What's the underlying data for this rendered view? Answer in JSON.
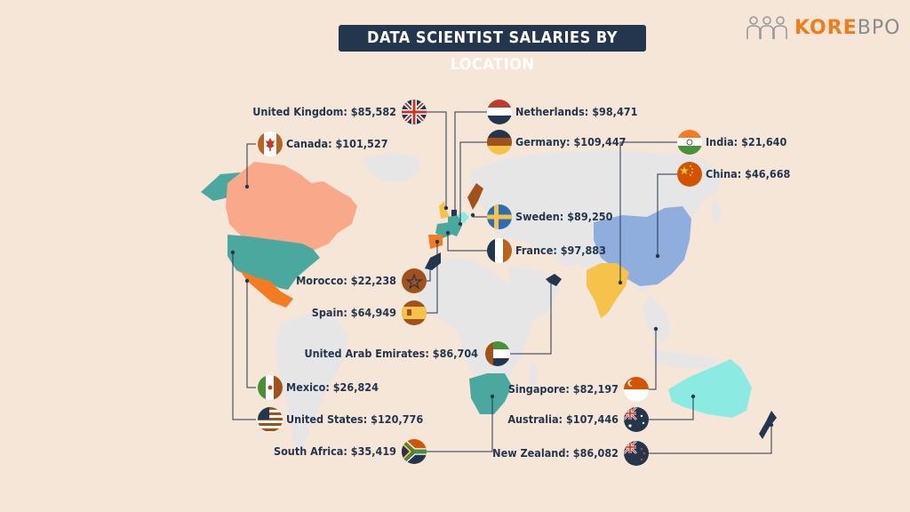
{
  "title": "DATA SCIENTIST SALARIES BY LOCATION",
  "brand": {
    "primary": "KORE",
    "secondary": "BPO",
    "icon": "people-group-icon"
  },
  "colors": {
    "title_bg": "#23364d",
    "brand_orange": "#f07d1a",
    "label_text": "#23364d",
    "background": "#f6e6d8",
    "land": "#e6e6e6"
  },
  "locations": [
    {
      "id": "united-kingdom",
      "label": "United Kingdom: $85,582",
      "country": "United Kingdom",
      "salary": 85582,
      "flag": "uk-flag-icon"
    },
    {
      "id": "netherlands",
      "label": "Netherlands: $98,471",
      "country": "Netherlands",
      "salary": 98471,
      "flag": "netherlands-flag-icon"
    },
    {
      "id": "canada",
      "label": "Canada: $101,527",
      "country": "Canada",
      "salary": 101527,
      "flag": "canada-flag-icon"
    },
    {
      "id": "germany",
      "label": "Germany: $109,447",
      "country": "Germany",
      "salary": 109447,
      "flag": "germany-flag-icon"
    },
    {
      "id": "india",
      "label": "India: $21,640",
      "country": "India",
      "salary": 21640,
      "flag": "india-flag-icon"
    },
    {
      "id": "china",
      "label": "China: $46,668",
      "country": "China",
      "salary": 46668,
      "flag": "china-flag-icon"
    },
    {
      "id": "sweden",
      "label": "Sweden: $89,250",
      "country": "Sweden",
      "salary": 89250,
      "flag": "sweden-flag-icon"
    },
    {
      "id": "france",
      "label": "France: $97,883",
      "country": "France",
      "salary": 97883,
      "flag": "france-flag-icon"
    },
    {
      "id": "morocco",
      "label": "Morocco: $22,238",
      "country": "Morocco",
      "salary": 22238,
      "flag": "morocco-flag-icon"
    },
    {
      "id": "spain",
      "label": "Spain: $64,949",
      "country": "Spain",
      "salary": 64949,
      "flag": "spain-flag-icon"
    },
    {
      "id": "uae",
      "label": "United Arab Emirates: $86,704",
      "country": "United Arab Emirates",
      "salary": 86704,
      "flag": "uae-flag-icon"
    },
    {
      "id": "singapore",
      "label": "Singapore: $82,197",
      "country": "Singapore",
      "salary": 82197,
      "flag": "singapore-flag-icon"
    },
    {
      "id": "mexico",
      "label": "Mexico: $26,824",
      "country": "Mexico",
      "salary": 26824,
      "flag": "mexico-flag-icon"
    },
    {
      "id": "australia",
      "label": "Australia: $107,446",
      "country": "Australia",
      "salary": 107446,
      "flag": "australia-flag-icon"
    },
    {
      "id": "united-states",
      "label": "United States: $120,776",
      "country": "United States",
      "salary": 120776,
      "flag": "usa-flag-icon"
    },
    {
      "id": "south-africa",
      "label": "South Africa: $35,419",
      "country": "South Africa",
      "salary": 35419,
      "flag": "south-africa-flag-icon"
    },
    {
      "id": "new-zealand",
      "label": "New Zealand: $86,082",
      "country": "New Zealand",
      "salary": 86082,
      "flag": "new-zealand-flag-icon"
    }
  ]
}
